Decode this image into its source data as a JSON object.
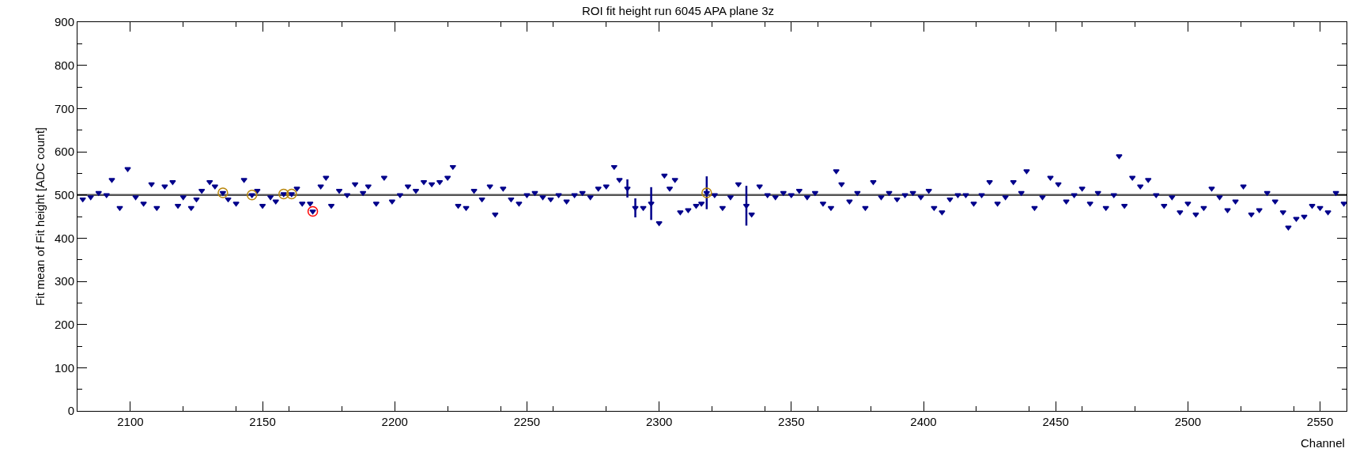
{
  "chart_data": {
    "type": "scatter",
    "title": "ROI fit height run 6045 APA plane 3z",
    "xlabel": "Channel",
    "ylabel": "Fit mean of Fit height [ADC count]",
    "xlim": [
      2080,
      2560
    ],
    "xticks": [
      2100,
      2150,
      2200,
      2250,
      2300,
      2350,
      2400,
      2450,
      2500,
      2550
    ],
    "ylim": [
      0,
      900
    ],
    "yticks": [
      0,
      100,
      200,
      300,
      400,
      500,
      600,
      700,
      800,
      900
    ],
    "grid": false,
    "marker": "triangle",
    "ref_lines": [
      {
        "axis": "y",
        "value": 500,
        "color": "#555555",
        "line_style": "solid"
      }
    ],
    "series": [
      {
        "color": "#00008b",
        "x": [
          2082,
          2085,
          2088,
          2091,
          2093,
          2096,
          2099,
          2102,
          2105,
          2108,
          2110,
          2113,
          2116,
          2118,
          2120,
          2123,
          2125,
          2127,
          2130,
          2132,
          2135,
          2137,
          2140,
          2143,
          2146,
          2148,
          2150,
          2153,
          2155,
          2158,
          2161,
          2163,
          2165,
          2168,
          2169,
          2172,
          2174,
          2176,
          2179,
          2182,
          2185,
          2188,
          2190,
          2193,
          2196,
          2199,
          2202,
          2205,
          2208,
          2211,
          2214,
          2217,
          2220,
          2222,
          2224,
          2227,
          2230,
          2233,
          2236,
          2238,
          2241,
          2244,
          2247,
          2250,
          2253,
          2256,
          2259,
          2262,
          2265,
          2268,
          2271,
          2274,
          2277,
          2280,
          2283,
          2285,
          2288,
          2291,
          2294,
          2297,
          2300,
          2302,
          2304,
          2306,
          2308,
          2311,
          2314,
          2316,
          2318,
          2321,
          2324,
          2327,
          2330,
          2333,
          2335,
          2338,
          2341,
          2344,
          2347,
          2350,
          2353,
          2356,
          2359,
          2362,
          2365,
          2367,
          2369,
          2372,
          2375,
          2378,
          2381,
          2384,
          2387,
          2390,
          2393,
          2396,
          2399,
          2402,
          2404,
          2407,
          2410,
          2413,
          2416,
          2419,
          2422,
          2425,
          2428,
          2431,
          2434,
          2437,
          2439,
          2442,
          2445,
          2448,
          2451,
          2454,
          2457,
          2460,
          2463,
          2466,
          2469,
          2472,
          2474,
          2476,
          2479,
          2482,
          2485,
          2488,
          2491,
          2494,
          2497,
          2500,
          2503,
          2506,
          2509,
          2512,
          2515,
          2518,
          2521,
          2524,
          2527,
          2530,
          2533,
          2536,
          2538,
          2541,
          2544,
          2547,
          2550,
          2553,
          2556,
          2559
        ],
        "values": [
          490,
          495,
          505,
          500,
          535,
          470,
          560,
          495,
          480,
          525,
          470,
          520,
          530,
          475,
          495,
          470,
          490,
          510,
          530,
          520,
          505,
          490,
          480,
          535,
          500,
          510,
          475,
          495,
          485,
          502,
          502,
          515,
          480,
          480,
          462,
          520,
          540,
          475,
          510,
          500,
          525,
          505,
          520,
          480,
          540,
          485,
          500,
          520,
          510,
          530,
          525,
          530,
          540,
          565,
          475,
          470,
          510,
          490,
          520,
          455,
          515,
          490,
          480,
          500,
          505,
          495,
          490,
          500,
          485,
          500,
          505,
          495,
          515,
          520,
          565,
          535,
          515,
          470,
          470,
          480,
          435,
          545,
          515,
          535,
          460,
          465,
          475,
          480,
          505,
          500,
          470,
          495,
          525,
          475,
          455,
          520,
          500,
          495,
          505,
          500,
          510,
          495,
          505,
          480,
          470,
          555,
          525,
          485,
          505,
          470,
          530,
          495,
          505,
          490,
          500,
          505,
          495,
          510,
          470,
          460,
          490,
          500,
          500,
          480,
          500,
          530,
          480,
          495,
          530,
          505,
          555,
          470,
          495,
          540,
          525,
          485,
          500,
          515,
          480,
          505,
          470,
          500,
          590,
          475,
          540,
          520,
          535,
          500,
          475,
          495,
          460,
          480,
          455,
          470,
          515,
          495,
          465,
          485,
          520,
          455,
          465,
          505,
          485,
          460,
          425,
          445,
          450,
          475,
          470,
          460,
          505,
          480
        ],
        "errors": [
          null,
          null,
          null,
          null,
          null,
          null,
          null,
          null,
          null,
          null,
          null,
          null,
          null,
          null,
          null,
          null,
          null,
          null,
          null,
          null,
          null,
          null,
          null,
          null,
          null,
          null,
          null,
          null,
          null,
          null,
          null,
          null,
          null,
          null,
          null,
          null,
          null,
          null,
          null,
          null,
          null,
          null,
          null,
          null,
          null,
          null,
          null,
          null,
          null,
          null,
          null,
          null,
          null,
          null,
          null,
          null,
          null,
          null,
          null,
          null,
          null,
          null,
          null,
          null,
          null,
          null,
          null,
          null,
          null,
          null,
          null,
          null,
          null,
          null,
          null,
          null,
          21,
          22,
          null,
          38,
          null,
          null,
          null,
          null,
          null,
          null,
          null,
          null,
          38,
          null,
          null,
          null,
          null,
          46,
          null,
          null,
          null,
          null,
          null,
          null,
          null,
          null,
          null,
          null,
          null,
          null,
          null,
          null,
          null,
          null,
          null,
          null,
          null,
          null,
          null,
          null,
          null,
          null,
          null,
          null,
          null,
          null,
          null,
          null,
          null,
          null,
          null,
          null,
          null,
          null,
          null,
          null,
          null,
          null,
          null,
          null,
          null,
          null,
          null,
          null,
          null,
          null,
          null,
          null,
          null,
          null,
          null,
          null,
          null,
          null,
          null,
          null,
          null,
          null,
          null,
          null,
          null,
          null,
          null,
          null,
          null,
          null,
          null,
          null,
          null,
          null,
          null,
          null,
          null,
          null,
          null,
          null
        ]
      },
      {
        "color": "#b8860b",
        "marker": "circle",
        "x": [
          2135,
          2146,
          2158,
          2161,
          2318
        ],
        "values": [
          505,
          500,
          502,
          502,
          505
        ]
      },
      {
        "color": "#ff0000",
        "marker": "circle",
        "x": [
          2169
        ],
        "values": [
          462
        ]
      }
    ]
  }
}
